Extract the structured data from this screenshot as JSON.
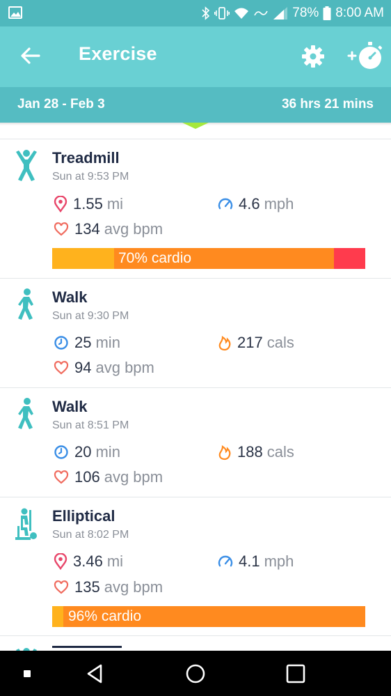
{
  "status_bar": {
    "battery": "78%",
    "time": "8:00 AM",
    "icons": [
      "gallery-icon",
      "bluetooth-icon",
      "vibrate-icon",
      "wifi-icon",
      "data-saver-icon",
      "signal-icon",
      "battery-icon"
    ]
  },
  "app_bar": {
    "title": "Exercise",
    "back_icon": "arrow-left-icon",
    "settings_icon": "gear-icon",
    "add_icon": "add-stopwatch-icon"
  },
  "range": {
    "dates": "Jan 28 - Feb 3",
    "total": "36 hrs 21 mins"
  },
  "exercises": [
    {
      "name": "Treadmill",
      "time": "Sun at 9:53 PM",
      "icon": "treadmill-person-icon",
      "stat1": {
        "icon": "location-pin-icon",
        "value": "1.55",
        "unit": "mi"
      },
      "stat2": {
        "icon": "speedometer-icon",
        "value": "4.6",
        "unit": "mph"
      },
      "heart": {
        "icon": "heart-icon",
        "value": "134",
        "unit": "avg bpm"
      },
      "zones": {
        "label": "70% cardio",
        "fat_burn": 0.2,
        "cardio": 0.7,
        "peak": 0.1
      }
    },
    {
      "name": "Walk",
      "time": "Sun at 9:30 PM",
      "icon": "walking-person-icon",
      "stat1": {
        "icon": "clock-icon",
        "value": "25",
        "unit": "min"
      },
      "stat2": {
        "icon": "flame-icon",
        "value": "217",
        "unit": "cals"
      },
      "heart": {
        "icon": "heart-icon",
        "value": "94",
        "unit": "avg bpm"
      }
    },
    {
      "name": "Walk",
      "time": "Sun at 8:51 PM",
      "icon": "walking-person-icon",
      "stat1": {
        "icon": "clock-icon",
        "value": "20",
        "unit": "min"
      },
      "stat2": {
        "icon": "flame-icon",
        "value": "188",
        "unit": "cals"
      },
      "heart": {
        "icon": "heart-icon",
        "value": "106",
        "unit": "avg bpm"
      }
    },
    {
      "name": "Elliptical",
      "time": "Sun at 8:02 PM",
      "icon": "elliptical-person-icon",
      "stat1": {
        "icon": "location-pin-icon",
        "value": "3.46",
        "unit": "mi"
      },
      "stat2": {
        "icon": "speedometer-icon",
        "value": "4.1",
        "unit": "mph"
      },
      "heart": {
        "icon": "heart-icon",
        "value": "135",
        "unit": "avg bpm"
      },
      "zones": {
        "label": "96% cardio",
        "fat_burn": 0.04,
        "cardio": 0.96,
        "peak": 0
      }
    }
  ],
  "colors": {
    "status_bar": "#4fb8bd",
    "app_bar": "#69d0d3",
    "range_bar": "#55bcc2",
    "fat_burn": "#ffb21d",
    "cardio": "#ff8a1f",
    "peak": "#ff3b4d",
    "teal_icon": "#3fbfc0",
    "pin": "#e8466a",
    "speed": "#3a8ee6",
    "flame": "#ff8a1f"
  },
  "nav_bar": {
    "icons": [
      "recents-dot-icon",
      "back-triangle-icon",
      "home-circle-icon",
      "overview-square-icon"
    ]
  }
}
